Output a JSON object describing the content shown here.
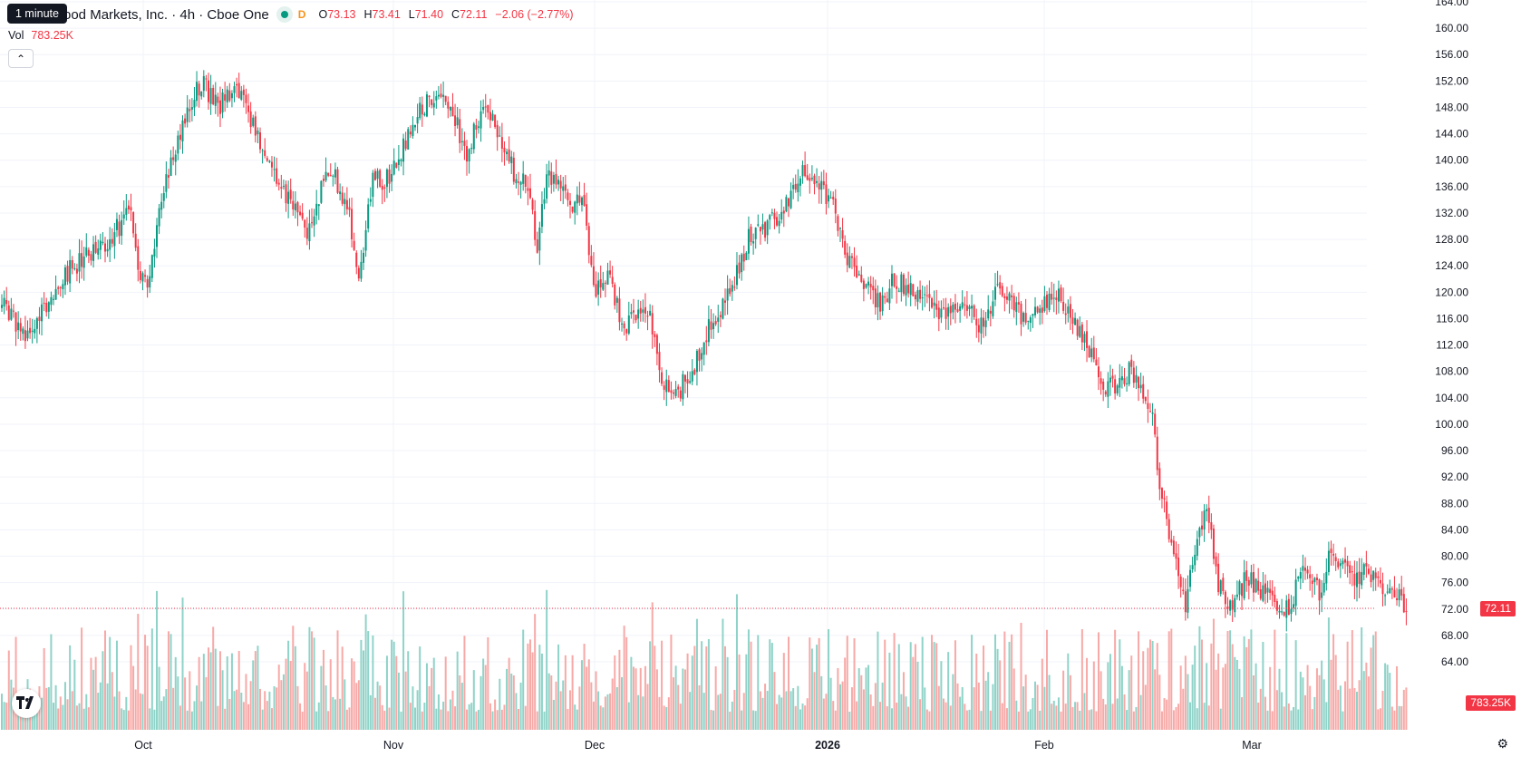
{
  "legend": {
    "title": "ood Markets, Inc. · 4h · Cboe One",
    "d_badge": "D",
    "open_label": "O",
    "open": "73.13",
    "high_label": "H",
    "high": "73.41",
    "low_label": "L",
    "low": "71.40",
    "close_label": "C",
    "close": "72.11",
    "change": "−2.06 (−2.77%)"
  },
  "tooltip": "1 minute",
  "volume": {
    "label": "Vol",
    "value": "783.25K"
  },
  "collapse_icon": "chevron-up-icon",
  "logo": {
    "name": "tradingview-logo",
    "text": "TV"
  },
  "price_tag": "72.11",
  "volume_tag": "783.25K",
  "settings_icon": "gear-icon",
  "colors": {
    "up": "#089981",
    "down": "#f23645",
    "up_volume": "#8fd3c8",
    "down_volume": "#f7a9a7"
  },
  "chart_data": {
    "type": "candlestick",
    "title": "",
    "timeframe": "4h",
    "y_axis_ticks": [
      "164.00",
      "160.00",
      "156.00",
      "152.00",
      "148.00",
      "144.00",
      "140.00",
      "136.00",
      "132.00",
      "128.00",
      "124.00",
      "120.00",
      "116.00",
      "112.00",
      "108.00",
      "104.00",
      "100.00",
      "96.00",
      "92.00",
      "88.00",
      "84.00",
      "80.00",
      "76.00",
      "72.00",
      "68.00",
      "64.00"
    ],
    "ylim": [
      62,
      165
    ],
    "x_axis_labels": [
      "Oct",
      "Nov",
      "Dec",
      "2026",
      "Feb",
      "Mar"
    ],
    "x_axis_bold": "2026",
    "last_price": 72.11,
    "grid": true,
    "price_waypoints": [
      [
        0,
        118
      ],
      [
        10,
        114
      ],
      [
        20,
        118
      ],
      [
        30,
        124
      ],
      [
        40,
        126
      ],
      [
        55,
        132
      ],
      [
        58,
        123
      ],
      [
        62,
        122
      ],
      [
        68,
        134
      ],
      [
        72,
        140
      ],
      [
        80,
        148
      ],
      [
        85,
        152
      ],
      [
        92,
        148
      ],
      [
        100,
        151
      ],
      [
        106,
        146
      ],
      [
        112,
        140
      ],
      [
        118,
        136
      ],
      [
        124,
        134
      ],
      [
        130,
        128
      ],
      [
        134,
        134
      ],
      [
        140,
        139
      ],
      [
        148,
        132
      ],
      [
        152,
        122
      ],
      [
        158,
        138
      ],
      [
        162,
        136
      ],
      [
        170,
        141
      ],
      [
        178,
        148
      ],
      [
        186,
        150
      ],
      [
        192,
        147
      ],
      [
        198,
        141
      ],
      [
        205,
        149
      ],
      [
        212,
        144
      ],
      [
        218,
        138
      ],
      [
        224,
        136
      ],
      [
        228,
        126
      ],
      [
        232,
        138
      ],
      [
        240,
        134
      ],
      [
        248,
        133
      ],
      [
        252,
        120
      ],
      [
        258,
        123
      ],
      [
        264,
        115
      ],
      [
        270,
        116
      ],
      [
        276,
        117
      ],
      [
        280,
        107
      ],
      [
        286,
        104
      ],
      [
        294,
        108
      ],
      [
        300,
        114
      ],
      [
        306,
        117
      ],
      [
        312,
        122
      ],
      [
        318,
        128
      ],
      [
        326,
        130
      ],
      [
        334,
        133
      ],
      [
        340,
        138
      ],
      [
        348,
        136
      ],
      [
        354,
        133
      ],
      [
        360,
        125
      ],
      [
        368,
        121
      ],
      [
        374,
        118
      ],
      [
        380,
        122
      ],
      [
        388,
        120
      ],
      [
        394,
        119
      ],
      [
        402,
        116
      ],
      [
        410,
        119
      ],
      [
        418,
        114
      ],
      [
        424,
        121
      ],
      [
        430,
        118
      ],
      [
        436,
        116
      ],
      [
        442,
        118
      ],
      [
        450,
        120
      ],
      [
        456,
        116
      ],
      [
        462,
        112
      ],
      [
        468,
        106
      ],
      [
        474,
        106
      ],
      [
        480,
        108
      ],
      [
        486,
        104
      ],
      [
        490,
        101
      ],
      [
        492,
        93
      ],
      [
        494,
        89
      ],
      [
        496,
        86
      ],
      [
        498,
        82
      ],
      [
        500,
        79
      ],
      [
        502,
        75
      ],
      [
        504,
        73
      ],
      [
        508,
        81
      ],
      [
        512,
        87
      ],
      [
        514,
        85
      ],
      [
        518,
        76
      ],
      [
        522,
        73
      ],
      [
        526,
        74
      ],
      [
        530,
        77
      ],
      [
        536,
        75
      ],
      [
        544,
        73
      ],
      [
        548,
        72
      ],
      [
        552,
        76
      ],
      [
        556,
        78
      ],
      [
        562,
        74
      ],
      [
        566,
        82
      ],
      [
        570,
        79
      ],
      [
        576,
        76
      ],
      [
        582,
        78
      ],
      [
        588,
        75
      ],
      [
        594,
        74
      ],
      [
        598,
        72
      ]
    ],
    "volume_scale_note": "volume bars share bottom of pane, heights relative to max"
  }
}
